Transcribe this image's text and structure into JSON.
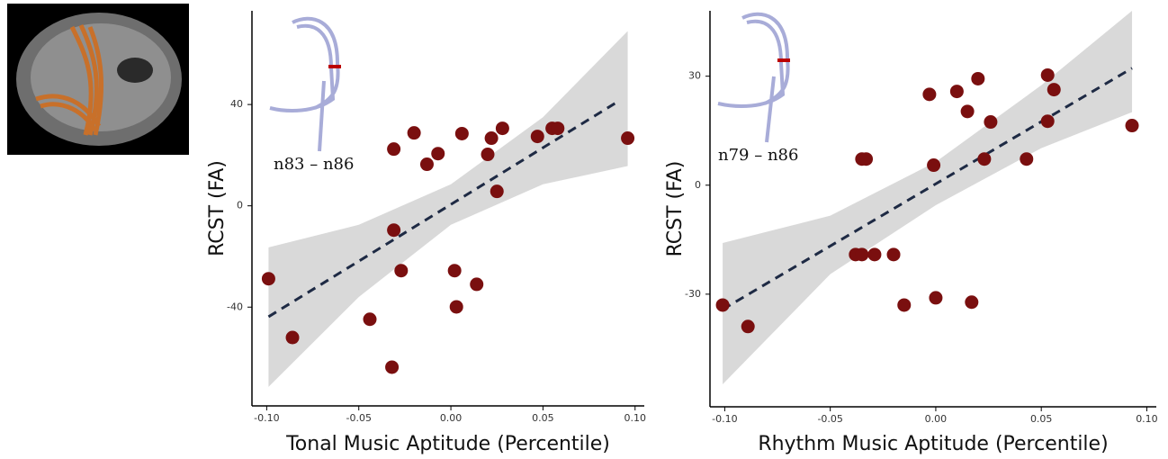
{
  "chart_data": [
    {
      "type": "scatter",
      "x_label": "Tonal Music Aptitude (Percentile)",
      "y_label": "RCST (FA)",
      "annotation": "n83 – n86",
      "color": "#7a0f0f",
      "line_color": "#1e2a44",
      "band_color": "#d9d9d9",
      "xlim": [
        -0.108,
        0.105
      ],
      "ylim": [
        -79,
        77
      ],
      "xticks": [
        {
          "value": -0.1,
          "label": "-0.10"
        },
        {
          "value": -0.05,
          "label": "-0.05"
        },
        {
          "value": 0,
          "label": "0.00"
        },
        {
          "value": 0.05,
          "label": "0.05"
        },
        {
          "value": 0.1,
          "label": "0.10"
        }
      ],
      "yticks": [
        -40,
        0,
        40
      ],
      "x": [
        -0.099,
        -0.086,
        -0.044,
        -0.032,
        -0.031,
        -0.027,
        -0.031,
        -0.02,
        -0.013,
        -0.007,
        0.002,
        0.003,
        0.006,
        0.014,
        0.02,
        0.022,
        0.025,
        0.028,
        0.047,
        0.055,
        0.058,
        0.096
      ],
      "y": [
        -28.8,
        -52,
        -44.8,
        -63.7,
        -9.6,
        -25.6,
        22.4,
        28.8,
        16.4,
        20.6,
        -25.6,
        -39.9,
        28.5,
        -31,
        20.3,
        26.7,
        5.7,
        30.6,
        27.4,
        30.6,
        30.6,
        26.7
      ],
      "fit": {
        "x": [
          -0.099,
          0.091
        ],
        "y": [
          -43.8,
          41.3
        ]
      },
      "band": {
        "x": [
          -0.099,
          -0.05,
          0,
          0.05,
          0.096
        ],
        "upper": [
          -16.4,
          -7.5,
          8.5,
          35,
          69
        ],
        "lower": [
          -71.5,
          -36,
          -7.5,
          8.5,
          15.7
        ]
      }
    },
    {
      "type": "scatter",
      "x_label": "Rhythm Music Aptitude (Percentile)",
      "y_label": "RCST (FA)",
      "annotation": "n79 – n86",
      "color": "#7a0f0f",
      "line_color": "#1e2a44",
      "band_color": "#d9d9d9",
      "xlim": [
        -0.107,
        0.1045
      ],
      "ylim": [
        -61,
        48
      ],
      "xticks": [
        {
          "value": -0.1,
          "label": "-0.10"
        },
        {
          "value": -0.05,
          "label": "-0.05"
        },
        {
          "value": 0,
          "label": "0.00"
        },
        {
          "value": 0.05,
          "label": "0.05"
        },
        {
          "value": 0.1,
          "label": "0.10"
        }
      ],
      "yticks": [
        -30,
        0,
        30
      ],
      "x": [
        -0.101,
        -0.089,
        -0.038,
        -0.035,
        -0.033,
        -0.035,
        -0.029,
        -0.02,
        -0.015,
        -0.003,
        -0.001,
        0.0,
        0.01,
        0.015,
        0.017,
        0.02,
        0.023,
        0.026,
        0.043,
        0.053,
        0.053,
        0.056,
        0.093
      ],
      "y": [
        -33,
        -38.9,
        -19.1,
        7.2,
        7.2,
        -19.1,
        -19.1,
        -19.1,
        -33,
        25,
        5.5,
        -31,
        25.8,
        20.3,
        -32.2,
        29.3,
        7.2,
        17.4,
        7.2,
        30.3,
        17.6,
        26.3,
        16.4
      ],
      "fit": {
        "x": [
          -0.101,
          0.093
        ],
        "y": [
          -34.2,
          32.2
        ]
      },
      "band": {
        "x": [
          -0.101,
          -0.05,
          0,
          0.05,
          0.093
        ],
        "upper": [
          -15.9,
          -8.4,
          6.4,
          27.5,
          48
        ],
        "lower": [
          -54.8,
          -24.5,
          -5.5,
          10.2,
          20.1
        ]
      }
    }
  ]
}
